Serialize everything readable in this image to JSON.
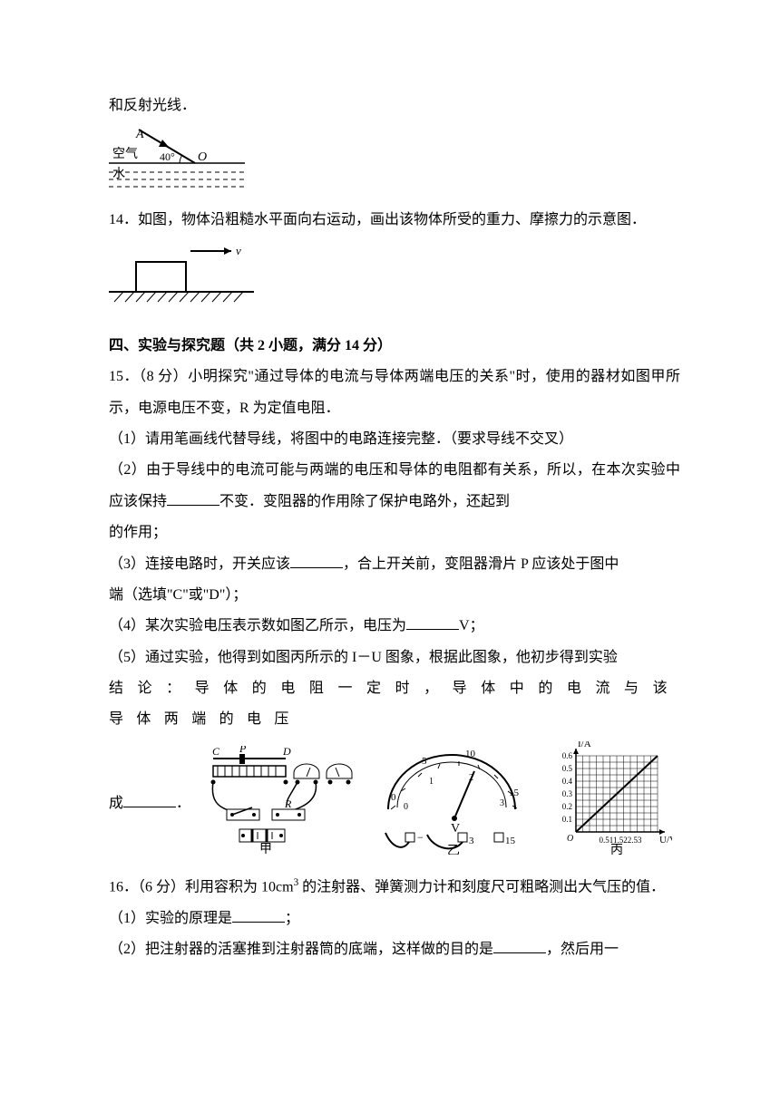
{
  "top_fragment": "和反射光线．",
  "fig_refraction": {
    "label_A": "A",
    "label_O": "O",
    "angle": "40°",
    "label_air": "空气",
    "label_water": "水",
    "stroke": "#000000"
  },
  "q14": {
    "text": "14．如图，物体沿粗糙水平面向右运动，画出该物体所受的重力、摩擦力的示意图．",
    "fig": {
      "label_v": "v",
      "stroke": "#000000"
    }
  },
  "section4": {
    "title": "四、实验与探究题（共 2 小题，满分 14 分）"
  },
  "q15": {
    "intro": "15．（8 分）小明探究\"通过导体的电流与导体两端电压的关系\"时，使用的器材如图甲所示，电源电压不变，R 为定值电阻．",
    "p1": "（1）请用笔画线代替导线，将图中的电路连接完整．（要求导线不交叉）",
    "p2a": "（2）由于导线中的电流可能与两端的电压和导体的电阻都有关系，所以，在本次实验中应该保持",
    "p2b": "不变．变阻器的作用除了保护电路外，还起到",
    "p2c": "的作用；",
    "p3a": "（3）连接电路时，开关应该",
    "p3b": "，合上开关前，变阻器滑片 P 应该处于图中",
    "p3c": "端（选填\"C\"或\"D\"）；",
    "p4a": "（4）某次实验电压表示数如图乙所示，电压为",
    "p4b": "V；",
    "p5a": "（5）通过实验，他得到如图丙所示的 I－U 图象，根据此图象，他初步得到实验",
    "p5b_spread": "结论：导体的电阻一定时，导体中的电流与该导体两端的电压",
    "p5c": "成",
    "p5d": "．",
    "fig_circuit": {
      "C": "C",
      "P": "P",
      "D": "D",
      "R": "R",
      "caption": "甲"
    },
    "fig_meter": {
      "scale_top": [
        "0",
        "5",
        "10",
        "15"
      ],
      "scale_bot": [
        "0",
        "1",
        "2",
        "3"
      ],
      "V": "V",
      "minus": "−",
      "three": "3",
      "fifteen": "15",
      "caption": "乙"
    },
    "fig_graph": {
      "ylabel": "I/A",
      "xlabel": "U/V",
      "yticks": [
        "0.1",
        "0.2",
        "0.3",
        "0.4",
        "0.5",
        "0.6"
      ],
      "xticks": "0.511.522.53",
      "caption": "丙",
      "grid_color": "#000000",
      "line_color": "#000000",
      "bg": "#ffffff",
      "ny": 6,
      "nx": 6
    }
  },
  "q16": {
    "intro_a": "16．（6 分）利用容积为 10cm",
    "intro_sup": "3",
    "intro_b": " 的注射器、弹簧测力计和刻度尺可粗略测出大气压的值．",
    "p1a": "（1）实验的原理是",
    "p1b": "；",
    "p2a": "（2）把注射器的活塞推到注射器筒的底端，这样做的目的是",
    "p2b": "，然后用一"
  }
}
